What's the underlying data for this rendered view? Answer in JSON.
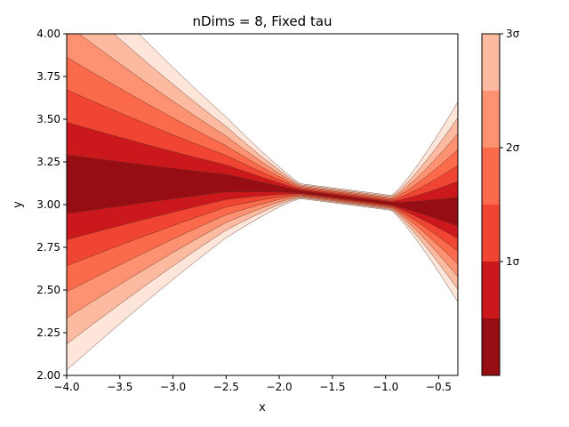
{
  "chart_data": {
    "type": "contour",
    "title": "nDims = 8, Fixed tau",
    "xlabel": "x",
    "ylabel": "y",
    "xlim": [
      -4.0,
      -0.32
    ],
    "ylim": [
      2.0,
      4.0
    ],
    "xticks": [
      -4.0,
      -3.5,
      -3.0,
      -2.5,
      -2.0,
      -1.5,
      -1.0,
      -0.5
    ],
    "xtick_labels": [
      "−4.0",
      "−3.5",
      "−3.0",
      "−2.5",
      "−2.0",
      "−1.5",
      "−1.0",
      "−0.5"
    ],
    "yticks": [
      2.0,
      2.25,
      2.5,
      2.75,
      3.0,
      3.25,
      3.5,
      3.75,
      4.0
    ],
    "ytick_labels": [
      "2.00",
      "2.25",
      "2.50",
      "2.75",
      "3.00",
      "3.25",
      "3.50",
      "3.75",
      "4.00"
    ],
    "colorbar": {
      "levels_sigma": [
        0,
        0.5,
        1.0,
        1.5,
        2.0,
        2.5,
        3.0
      ],
      "colors": [
        "#960e14",
        "#cb181d",
        "#ef4532",
        "#fb6a4a",
        "#fc9272",
        "#fcbba1",
        "#fee5d9"
      ],
      "tick_values": [
        1,
        2,
        3
      ],
      "tick_labels": [
        "1σ",
        "2σ",
        "3σ"
      ]
    },
    "ridge": {
      "description_points": [
        {
          "x": -4.0,
          "y": 3.1
        },
        {
          "x": -2.5,
          "y": 3.12
        },
        {
          "x": -2.0,
          "y": 3.09
        },
        {
          "x": -1.5,
          "y": 3.05
        },
        {
          "x": -1.0,
          "y": 3.01
        },
        {
          "x": -0.32,
          "y": 2.95
        }
      ]
    }
  }
}
